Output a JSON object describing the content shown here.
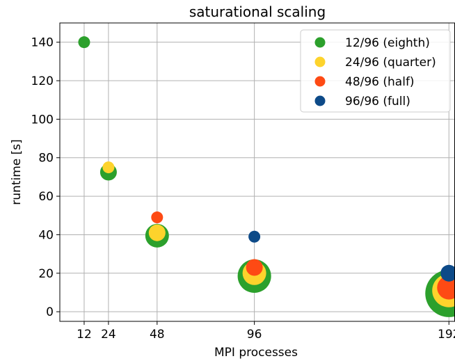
{
  "chart_data": {
    "type": "scatter",
    "title": "saturational scaling",
    "xlabel": "MPI processes",
    "ylabel": "runtime [s]",
    "x_ticks": [
      12,
      24,
      48,
      96,
      192
    ],
    "y_ticks": [
      0,
      20,
      40,
      60,
      80,
      100,
      120,
      140
    ],
    "xlim": [
      0,
      195
    ],
    "ylim": [
      -5,
      150
    ],
    "grid": true,
    "legend_position": "top-right",
    "series": [
      {
        "name": "12/96 (eighth)",
        "color": "#2ca02c",
        "points": [
          {
            "x": 12,
            "y": 140,
            "size": 1
          },
          {
            "x": 24,
            "y": 72.5,
            "size": 2
          },
          {
            "x": 48,
            "y": 39.5,
            "size": 4
          },
          {
            "x": 96,
            "y": 18.5,
            "size": 8
          },
          {
            "x": 192,
            "y": 9.5,
            "size": 16
          }
        ]
      },
      {
        "name": "24/96 (quarter)",
        "color": "#fdd32c",
        "points": [
          {
            "x": 24,
            "y": 75,
            "size": 1
          },
          {
            "x": 48,
            "y": 41,
            "size": 2
          },
          {
            "x": 96,
            "y": 20,
            "size": 4
          },
          {
            "x": 192,
            "y": 11,
            "size": 8
          }
        ]
      },
      {
        "name": "48/96 (half)",
        "color": "#fe4a14",
        "points": [
          {
            "x": 48,
            "y": 49,
            "size": 1
          },
          {
            "x": 96,
            "y": 23,
            "size": 2
          },
          {
            "x": 192,
            "y": 12.5,
            "size": 4
          }
        ]
      },
      {
        "name": "96/96 (full)",
        "color": "#0d4a88",
        "points": [
          {
            "x": 96,
            "y": 39,
            "size": 1
          },
          {
            "x": 192,
            "y": 20,
            "size": 2
          }
        ]
      }
    ]
  }
}
